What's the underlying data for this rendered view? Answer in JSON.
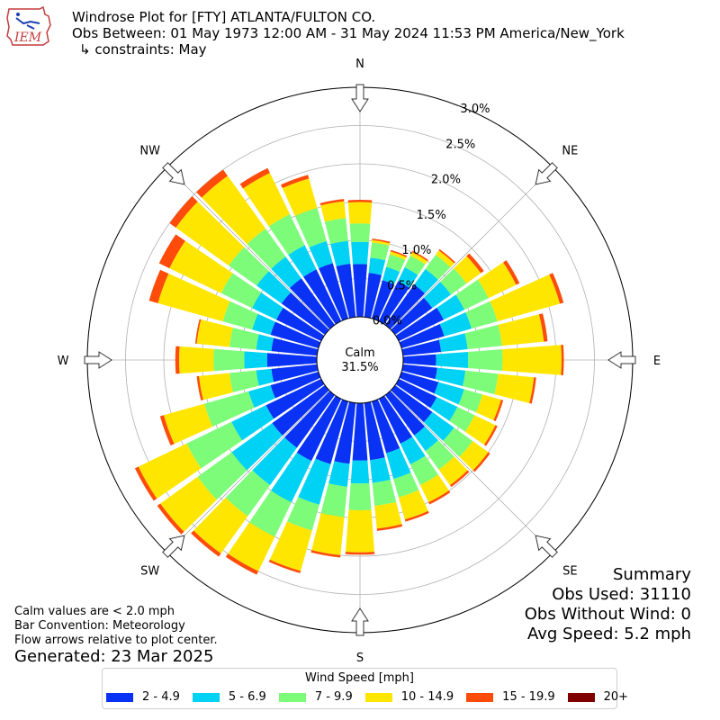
{
  "header": {
    "logo_text": "IEM",
    "title": "Windrose Plot for [FTY] ATLANTA/FULTON CO.",
    "obs_between": "Obs Between: 01 May 1973 12:00 AM - 31 May 2024 11:53 PM America/New_York",
    "constraints": "↳ constraints: May"
  },
  "summary": {
    "heading": "Summary",
    "obs_used": "Obs Used: 31110",
    "obs_without_wind": "Obs Without Wind: 0",
    "avg_speed": "Avg Speed: 5.2 mph"
  },
  "notes": {
    "calm_def": "Calm values are < 2.0 mph",
    "bar_convention": "Bar Convention: Meteorology",
    "flow_arrows": "Flow arrows relative to plot center.",
    "generated": "Generated: 23 Mar 2025"
  },
  "legend": {
    "title": "Wind Speed [mph]",
    "items": [
      {
        "label": "2 - 4.9",
        "color": "#0a32f5"
      },
      {
        "label": "5 - 6.9",
        "color": "#00d2f5"
      },
      {
        "label": "7 - 9.9",
        "color": "#7cfc78"
      },
      {
        "label": "10 - 14.9",
        "color": "#ffe600"
      },
      {
        "label": "15 - 19.9",
        "color": "#ff4c0a"
      },
      {
        "label": "20+",
        "color": "#800000"
      }
    ]
  },
  "chart_data": {
    "type": "windrose",
    "calm_label": "Calm",
    "calm_value": "31.5%",
    "calm_percent": 31.5,
    "direction_labels": [
      "N",
      "NE",
      "E",
      "SE",
      "S",
      "SW",
      "W",
      "NW"
    ],
    "radial_ticks": [
      "0.0%",
      "0.5%",
      "1.0%",
      "1.5%",
      "2.0%",
      "2.5%",
      "3.0%"
    ],
    "r_max": 3.0,
    "num_directions": 36,
    "bins": [
      "2 - 4.9",
      "5 - 6.9",
      "7 - 9.9",
      "10 - 14.9",
      "15 - 19.9",
      "20+"
    ],
    "directions_deg": [
      0,
      10,
      20,
      30,
      40,
      50,
      60,
      70,
      80,
      90,
      100,
      110,
      120,
      130,
      140,
      150,
      160,
      170,
      180,
      190,
      200,
      210,
      220,
      230,
      240,
      250,
      260,
      270,
      280,
      290,
      300,
      310,
      320,
      330,
      340,
      350
    ],
    "cumulative_percent": [
      [
        0.69,
        0.98,
        1.22,
        1.5,
        1.53,
        1.53
      ],
      [
        0.58,
        0.78,
        0.98,
        1.01,
        1.03,
        1.03
      ],
      [
        0.52,
        0.7,
        0.87,
        0.91,
        0.93,
        0.93
      ],
      [
        0.58,
        0.78,
        0.95,
        1.0,
        1.02,
        1.02
      ],
      [
        0.65,
        0.9,
        1.13,
        1.2,
        1.22,
        1.22
      ],
      [
        0.6,
        0.9,
        1.15,
        1.38,
        1.43,
        1.43
      ],
      [
        0.65,
        0.95,
        1.3,
        1.7,
        1.75,
        1.75
      ],
      [
        0.58,
        0.95,
        1.3,
        2.15,
        2.2,
        2.2
      ],
      [
        0.5,
        0.85,
        1.3,
        1.85,
        1.9,
        1.9
      ],
      [
        0.43,
        0.85,
        1.3,
        2.07,
        2.1,
        2.1
      ],
      [
        0.45,
        0.82,
        1.25,
        1.72,
        1.75,
        1.75
      ],
      [
        0.5,
        0.85,
        1.1,
        1.35,
        1.38,
        1.38
      ],
      [
        0.55,
        0.85,
        1.1,
        1.4,
        1.43,
        1.43
      ],
      [
        0.6,
        0.95,
        1.25,
        1.5,
        1.53,
        1.53
      ],
      [
        0.65,
        0.9,
        1.2,
        1.45,
        1.48,
        1.48
      ],
      [
        0.65,
        0.95,
        1.25,
        1.5,
        1.53,
        1.53
      ],
      [
        0.7,
        1.05,
        1.3,
        1.6,
        1.63,
        1.63
      ],
      [
        0.75,
        1.05,
        1.35,
        1.65,
        1.68,
        1.68
      ],
      [
        0.75,
        1.05,
        1.4,
        1.95,
        1.98,
        1.98
      ],
      [
        0.8,
        1.1,
        1.5,
        2.0,
        2.03,
        2.03
      ],
      [
        0.85,
        1.4,
        1.75,
        2.3,
        2.33,
        2.33
      ],
      [
        0.9,
        1.5,
        2.0,
        2.5,
        2.55,
        2.55
      ],
      [
        0.85,
        1.45,
        1.95,
        2.55,
        2.6,
        2.6
      ],
      [
        0.85,
        1.5,
        2.05,
        2.65,
        2.7,
        2.7
      ],
      [
        0.8,
        1.3,
        1.95,
        2.65,
        2.7,
        2.7
      ],
      [
        0.65,
        0.95,
        1.55,
        2.1,
        2.15,
        2.15
      ],
      [
        0.6,
        0.8,
        1.15,
        1.55,
        1.58,
        1.58
      ],
      [
        0.65,
        0.95,
        1.35,
        1.8,
        1.85,
        1.85
      ],
      [
        0.6,
        0.8,
        1.15,
        1.58,
        1.6,
        1.6
      ],
      [
        0.65,
        0.9,
        1.3,
        2.18,
        2.3,
        2.3
      ],
      [
        0.65,
        1.0,
        1.45,
        2.2,
        2.35,
        2.35
      ],
      [
        0.7,
        1.1,
        1.55,
        2.4,
        2.5,
        2.5
      ],
      [
        0.75,
        1.1,
        1.55,
        2.4,
        2.5,
        2.5
      ],
      [
        0.75,
        1.1,
        1.55,
        2.15,
        2.22,
        2.22
      ],
      [
        0.75,
        1.05,
        1.5,
        1.9,
        1.95,
        1.95
      ],
      [
        0.7,
        1.0,
        1.3,
        1.52,
        1.55,
        1.55
      ]
    ]
  }
}
